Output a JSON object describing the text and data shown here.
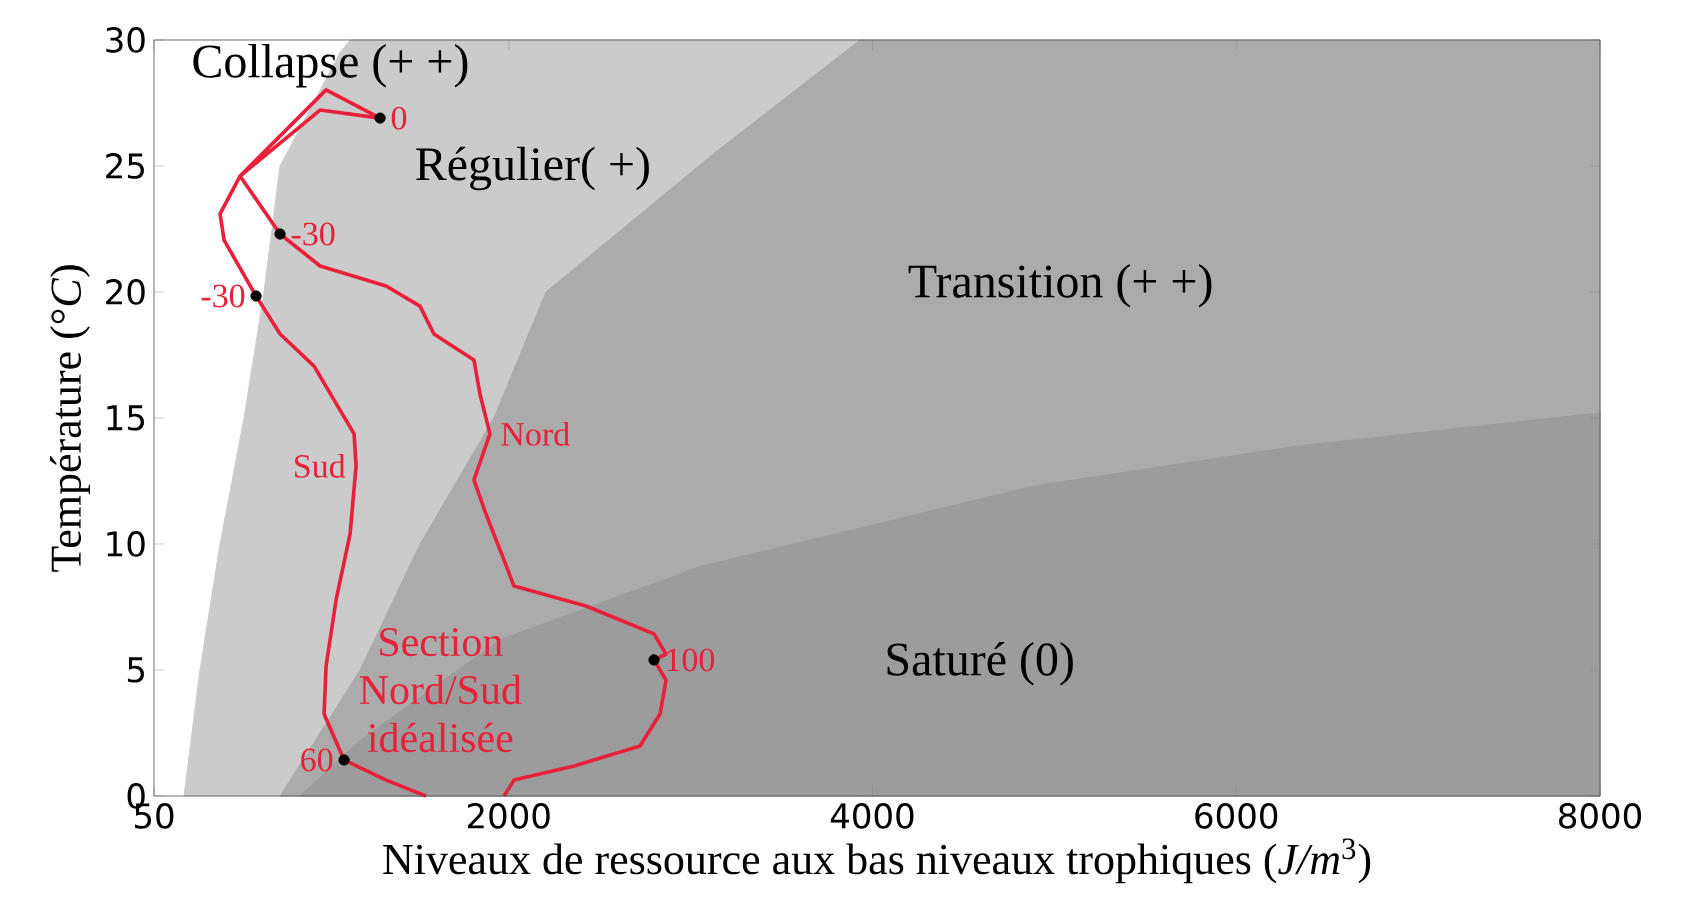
{
  "chart_data": {
    "type": "area",
    "xlabel": "Niveaux de ressource aux bas niveaux trophiques (*J/m*$^{3}$)",
    "ylabel": "Température (°*C*)",
    "xlim": [
      50,
      8000
    ],
    "ylim": [
      0,
      30
    ],
    "xticks": [
      50,
      2000,
      4000,
      6000,
      8000
    ],
    "yticks": [
      0,
      5,
      10,
      15,
      20,
      25,
      30
    ],
    "series": [
      {
        "color": "#cbcbcb",
        "x": [
          215,
          303,
          413,
          545,
          655,
          743,
          1073,
          1128,
          3932
        ],
        "values": [
          0,
          5,
          10,
          15,
          20,
          25,
          29.5,
          30,
          30
        ]
      },
      {
        "color": "#ababab",
        "x": [
          743,
          1183,
          1513,
          1919,
          2205,
          3129,
          3932,
          8000
        ],
        "values": [
          0,
          5,
          10,
          15,
          20,
          25.5,
          30,
          30
        ]
      },
      {
        "color": "#9c9c9c",
        "x": [
          853,
          1183,
          1953,
          3052,
          4889,
          6351,
          8000
        ],
        "values": [
          0,
          2.2,
          6.2,
          9.1,
          12.3,
          13.9,
          15.2
        ]
      },
      {
        "type": "line",
        "name": "Section Nord/Sud idéalisée",
        "color": "#e8203a",
        "x": [
          1545,
          1326,
          1095,
          985,
          996,
          1051,
          1128,
          1161,
          1150,
          930,
          743,
          611,
          435,
          413,
          523,
          963,
          1293,
          996,
          523,
          743,
          963,
          1326,
          1512,
          1589,
          1809,
          1842,
          1897,
          1809,
          1875,
          1974,
          2029,
          2425,
          2799,
          2865,
          2799,
          2865,
          2832,
          2722,
          2359,
          2029,
          1974
        ],
        "values": [
          0,
          0.63,
          1.43,
          3.25,
          5.16,
          7.78,
          10.4,
          13.1,
          14.37,
          17.06,
          18.33,
          19.84,
          22.06,
          23.1,
          24.6,
          27.22,
          26.9,
          28.02,
          24.6,
          22.3,
          21.03,
          20.24,
          19.44,
          18.33,
          17.3,
          15.95,
          14.37,
          12.54,
          11.19,
          9.37,
          8.33,
          7.54,
          6.43,
          5.63,
          5.4,
          4.6,
          3.25,
          1.98,
          1.19,
          0.63,
          0
        ]
      },
      {
        "type": "scatter",
        "color": "#000000",
        "marker": "circle",
        "x": [
          1293,
          743,
          611,
          2799,
          1095
        ],
        "values": [
          26.9,
          22.3,
          19.84,
          5.4,
          1.43
        ]
      }
    ],
    "annotations": [
      "Collapse (+ +)",
      "Régulier( +)",
      "Transition (+ +)",
      "Saturé (0)",
      {
        "text": "0",
        "x": 1293,
        "y": 26.9
      },
      {
        "text": "-30",
        "x": 743,
        "y": 22.3
      },
      {
        "text": "-30",
        "x": 611,
        "y": 19.84
      },
      {
        "text": "100",
        "x": 2799,
        "y": 5.4
      },
      {
        "text": "60",
        "x": 1095,
        "y": 1.43
      },
      {
        "text": "Sud",
        "x": 1161,
        "y": 13.1
      },
      {
        "text": "Nord",
        "x": 1897,
        "y": 14.37
      }
    ]
  }
}
